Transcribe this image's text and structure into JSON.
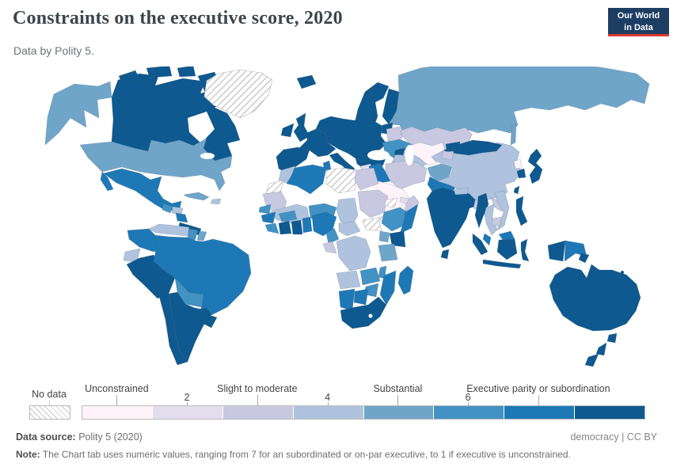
{
  "header": {
    "title": "Constraints on the executive score, 2020",
    "subtitle": "Data by Polity 5."
  },
  "logo": {
    "line1": "Our World",
    "line2": "in Data",
    "bg": "#1d3d63",
    "accent": "#dc3a32"
  },
  "legend": {
    "no_data_label": "No data",
    "ticks": [
      {
        "value": 1,
        "label": "Unconstrained",
        "row": "upper"
      },
      {
        "value": 2,
        "label": "2",
        "row": "lower"
      },
      {
        "value": 3,
        "label": "Slight to moderate",
        "row": "upper"
      },
      {
        "value": 4,
        "label": "4",
        "row": "lower"
      },
      {
        "value": 5,
        "label": "Substantial",
        "row": "upper"
      },
      {
        "value": 6,
        "label": "6",
        "row": "lower"
      },
      {
        "value": 7,
        "label": "Executive parity or subordination",
        "row": "upper"
      }
    ]
  },
  "footer": {
    "source_label": "Data source:",
    "source_value": "Polity 5 (2020)",
    "rights": "democracy | CC BY",
    "note_label": "Note:",
    "note_text": "The Chart tab uses numeric values, ranging from 7 for an subordinated or on-par executive, to 1 if executive is unconstrained."
  },
  "map": {
    "palette": [
      "#fdf3f8",
      "#e3ddee",
      "#c8c8e1",
      "#afc3de",
      "#6fa5c9",
      "#4292c3",
      "#1e78b6",
      "#0e598f"
    ],
    "no_data_value": "nd",
    "regions": {
      "greenland": "nd",
      "libya": "nd",
      "western-sahara": "nd",
      "south-sudan": "nd",
      "eritrea": "nd",
      "yemen": "nd",
      "canada": 8,
      "arctic-isl1": 8,
      "arctic-isl2": 8,
      "arctic-isl3": 8,
      "baffin": 8,
      "alaska": 5,
      "usa": 5,
      "baja": 7,
      "mexico": 7,
      "guatemala": 6,
      "honduras": 4,
      "nicaragua": 7,
      "costa-panama": 8,
      "cuba": 5,
      "hispaniola": 4,
      "venezuela": 4,
      "guyana": 6,
      "suriname": 5,
      "colombia": 7,
      "ecuador": 4,
      "peru": 8,
      "brazil": 7,
      "bolivia": 6,
      "paraguay": 6,
      "chile": 8,
      "argentina": 8,
      "uruguay": 8,
      "iceland": 8,
      "ireland": 8,
      "uk": 8,
      "norway-sweden": 8,
      "denmark": 8,
      "finland": 8,
      "baltics": 8,
      "iberia": 8,
      "france": 8,
      "central-europe": 8,
      "italy": 8,
      "sicily": 8,
      "balkans": 8,
      "belarus": 3,
      "ukraine": 6,
      "russia": 5,
      "sakhalin": 5,
      "turkey": 4,
      "georgia-armenia": 8,
      "azerbaijan": 3,
      "syria": 2,
      "jordan": 3,
      "israel": 8,
      "iraq": 7,
      "iran": 3,
      "saudi": 1,
      "oman": 3,
      "uae": 2,
      "kazakhstan": 3,
      "turkmen-uzbek": 1,
      "kyrgyzstan": 8,
      "tajikistan": 3,
      "afghanistan": 5,
      "pakistan": 7,
      "india": 8,
      "nepal": 4,
      "bangladesh": 3,
      "sri-lanka": 8,
      "china": 4,
      "mongolia": 8,
      "nkorea": 1,
      "skorea": 8,
      "japan": 8,
      "taiwan": 8,
      "myanmar": 8,
      "thailand": 4,
      "laos": 3,
      "vietnam": 4,
      "cambodia": 3,
      "malaysia-pen": 7,
      "borneo-my": 7,
      "borneo-id": 8,
      "sumatra": 8,
      "java": 8,
      "sulawesi": 8,
      "philippines": 8,
      "new-guinea-west": 8,
      "png": 7,
      "png-tip": 8,
      "australia": 8,
      "tasmania": 8,
      "nz-north": 8,
      "nz-south": 8,
      "fiji-a": 8,
      "fiji-b": 8,
      "morocco": 4,
      "algeria": 7,
      "tunisia": 7,
      "egypt": 3,
      "mauritania": 3,
      "mali": 4,
      "niger": 6,
      "chad": 4,
      "sudan": 3,
      "senegal": 6,
      "guinea": 7,
      "sierra-liberia": 6,
      "ivory": 8,
      "ghana": 8,
      "burkina": 6,
      "togo-benin": 7,
      "nigeria": 7,
      "cameroon": 6,
      "car": 4,
      "ethiopia": 6,
      "somalia": 7,
      "kenya": 8,
      "uganda": 5,
      "drc": 4,
      "gabon-congo": 3,
      "tanzania": 5,
      "angola": 4,
      "zambia": 6,
      "malawi": 6,
      "mozambique": 7,
      "zimbabwe": 6,
      "namibia": 7,
      "botswana": 7,
      "south-africa": 8,
      "madagascar": 7
    }
  }
}
